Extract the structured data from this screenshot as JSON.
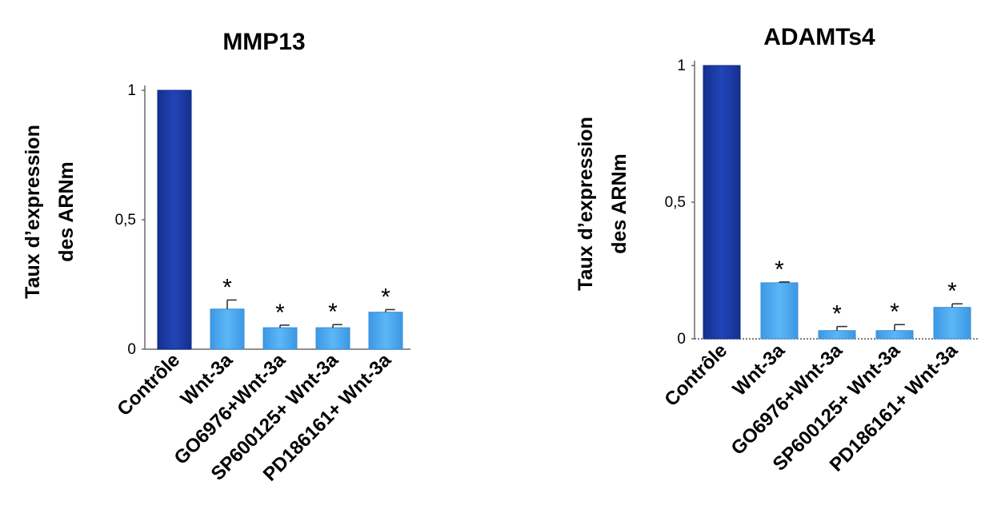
{
  "chart_data": [
    {
      "type": "bar",
      "title": "MMP13",
      "ylabel": "Taux d'expression des ARNm",
      "ylabel_lines": [
        "Taux d’expression",
        "des ARNm"
      ],
      "categories": [
        "Contrôle",
        "Wnt-3a",
        "GO6976+Wnt-3a",
        "SP600125+ Wnt-3a",
        "PD186161+ Wnt-3a"
      ],
      "values": [
        1.0,
        0.155,
        0.083,
        0.083,
        0.143
      ],
      "errors": [
        0.0,
        0.035,
        0.01,
        0.012,
        0.01
      ],
      "significance": [
        "",
        "*",
        "*",
        "*",
        "*"
      ],
      "colors": [
        "#1a3aa6",
        "#4aa8f0",
        "#4aa8f0",
        "#4aa8f0",
        "#4aa8f0"
      ],
      "ylim": [
        0,
        1
      ],
      "yticks": [
        0,
        0.5,
        1
      ],
      "ytick_labels": [
        "0",
        "0,5",
        "1"
      ],
      "grid": false
    },
    {
      "type": "bar",
      "title": "ADAMTs4",
      "ylabel": "Taux d'expression des ARNm",
      "ylabel_lines": [
        "Taux d’expression",
        "des ARNm"
      ],
      "categories": [
        "Contrôle",
        "Wnt-3a",
        "GO6976+Wnt-3a",
        "SP600125+ Wnt-3a",
        "PD186161+ Wnt-3a"
      ],
      "values": [
        1.0,
        0.205,
        0.03,
        0.03,
        0.115
      ],
      "errors": [
        0.0,
        0.003,
        0.015,
        0.022,
        0.013
      ],
      "significance": [
        "",
        "*",
        "*",
        "*",
        "*"
      ],
      "colors": [
        "#1a3aa6",
        "#4aa8f0",
        "#4aa8f0",
        "#4aa8f0",
        "#4aa8f0"
      ],
      "ylim": [
        0,
        1
      ],
      "yticks": [
        0,
        0.5,
        1
      ],
      "ytick_labels": [
        "0",
        "0,5",
        "1"
      ],
      "grid": false
    }
  ]
}
